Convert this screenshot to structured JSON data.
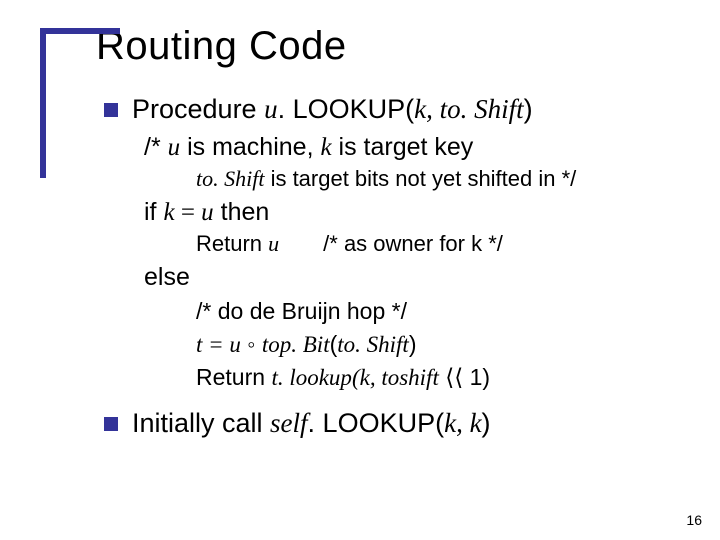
{
  "style": {
    "accent_color": "#333399",
    "background_color": "#ffffff",
    "text_color": "#000000",
    "title_fontsize": 40,
    "bullet_fontsize": 27,
    "indent1_fontsize": 25,
    "indent2_fontsize": 22,
    "page_num_fontsize": 14,
    "slide_width": 720,
    "slide_height": 540
  },
  "title": "Routing Code",
  "bullet1_prefix": "Procedure ",
  "bullet1_u": "u",
  "bullet1_mid": ". LOOKUP(",
  "bullet1_k": "k",
  "bullet1_comma": ", ",
  "bullet1_toshift": "to. Shift",
  "bullet1_close": ")",
  "comment1_open": "/* ",
  "comment1_u": "u",
  "comment1_mid1": " is machine, ",
  "comment1_k": "k",
  "comment1_mid2": " is target key",
  "comment2_toshift": "to. Shift",
  "comment2_rest": " is target bits not yet shifted in */",
  "if_prefix": "if ",
  "if_k": "k",
  "if_eq": " = ",
  "if_u": "u",
  "if_then": " then",
  "return1_prefix": "Return ",
  "return1_u": "u",
  "return1_gap": "  ",
  "return1_comment": "/* as owner for k */",
  "else": "else",
  "comment3": "/* do de Bruijn hop */",
  "t_line_t": "t",
  "t_line_eq": " = ",
  "t_line_u": "u",
  "t_line_mid": " ◦ ",
  "t_line_topbit": "top. Bit",
  "t_line_open": "(",
  "t_line_toshift": "to. Shift",
  "t_line_close": ")",
  "return2_prefix": "Return ",
  "return2_t": "t",
  "return2_mid": ". ",
  "return2_lookup": "lookup",
  "return2_open": "(",
  "return2_k": "k",
  "return2_comma": ", ",
  "return2_toshift": "toshift",
  "return2_shift": " ⟨⟨ 1)",
  "bullet2_prefix": "Initially call ",
  "bullet2_self": "self",
  "bullet2_mid": ". LOOKUP(",
  "bullet2_k1": "k",
  "bullet2_comma": ", ",
  "bullet2_k2": "k",
  "bullet2_close": ")",
  "page_number": "16"
}
